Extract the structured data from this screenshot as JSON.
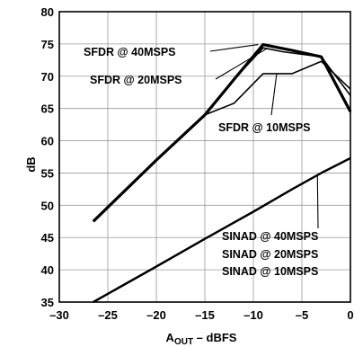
{
  "chart_data": {
    "type": "line",
    "xlabel": "A",
    "xlabel_sub": "OUT",
    "xlabel_suffix": " – dBFS",
    "ylabel": "dB",
    "xlim": [
      -30,
      0
    ],
    "ylim": [
      35,
      80
    ],
    "x_ticks": [
      -30,
      -25,
      -20,
      -15,
      -10,
      -5,
      0
    ],
    "y_ticks": [
      35,
      40,
      45,
      50,
      55,
      60,
      65,
      70,
      75,
      80
    ],
    "x_tick_labels": [
      "–30",
      "–25",
      "–20",
      "–15",
      "–10",
      "–5",
      "0"
    ],
    "y_tick_labels": [
      "35",
      "40",
      "45",
      "50",
      "55",
      "60",
      "65",
      "70",
      "75",
      "80"
    ],
    "grid": true,
    "series": [
      {
        "name": "SFDR @ 40MSPS",
        "x": [
          -26.5,
          -20,
          -15,
          -12,
          -9,
          -6,
          -3,
          0
        ],
        "y": [
          47.5,
          57,
          64,
          69.5,
          74.9,
          74,
          73,
          64.5
        ]
      },
      {
        "name": "SFDR @ 20MSPS",
        "x": [
          -26.5,
          -20,
          -15,
          -12,
          -9,
          -7,
          -3,
          0
        ],
        "y": [
          47.5,
          57,
          64,
          69.5,
          74.4,
          73.8,
          73,
          67
        ]
      },
      {
        "name": "SFDR @ 10MSPS",
        "x": [
          -15,
          -12,
          -9,
          -6,
          -3,
          0
        ],
        "y": [
          64,
          65.8,
          70.4,
          70.4,
          72.3,
          68
        ]
      },
      {
        "name": "SINAD @ 40MSPS",
        "x": [
          -26.5,
          -20,
          -15,
          -10,
          -6,
          -3,
          0
        ],
        "y": [
          35,
          40.5,
          44.8,
          49,
          52.5,
          55,
          57.3
        ]
      },
      {
        "name": "SINAD @ 20MSPS",
        "x": [
          -26.5,
          -20,
          -15,
          -10,
          -6,
          -3,
          0
        ],
        "y": [
          35,
          40.5,
          44.8,
          49,
          52.5,
          55,
          57.3
        ]
      },
      {
        "name": "SINAD @ 10MSPS",
        "x": [
          -26.5,
          -20,
          -15,
          -10,
          -6,
          -3,
          0
        ],
        "y": [
          35,
          40.5,
          44.8,
          49,
          52.5,
          55,
          57.3
        ]
      }
    ],
    "annotations": [
      {
        "text": "SFDR @ 40MSPS",
        "target": [
          -9.5,
          74.9
        ]
      },
      {
        "text": "SFDR @ 20MSPS",
        "target": [
          -8.6,
          74.3
        ]
      },
      {
        "text": "SFDR @ 10MSPS",
        "target": [
          -7.6,
          70.4
        ]
      },
      {
        "text": "SINAD @ 40MSPS",
        "target": [
          -3.4,
          54.8
        ]
      },
      {
        "text": "SINAD @ 20MSPS",
        "target": null
      },
      {
        "text": "SINAD @ 10MSPS",
        "target": null
      }
    ]
  }
}
